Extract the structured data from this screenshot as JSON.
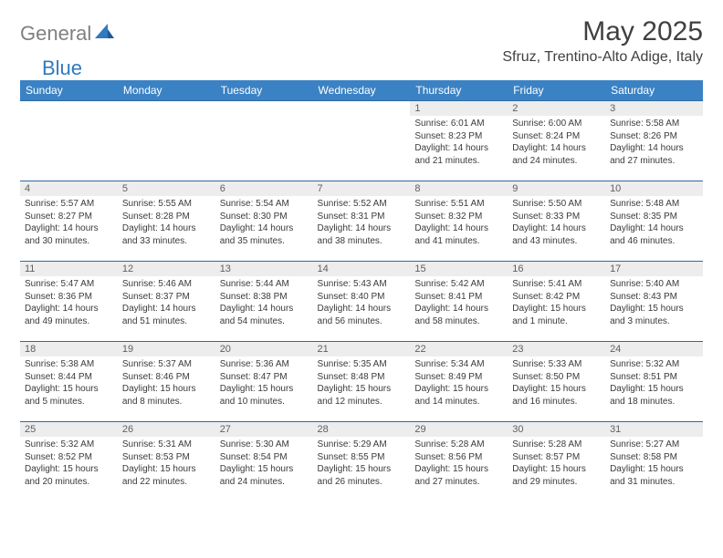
{
  "logo": {
    "text1": "General",
    "text2": "Blue"
  },
  "title": "May 2025",
  "location": "Sfruz, Trentino-Alto Adige, Italy",
  "colors": {
    "header_bg": "#3b82c4",
    "header_text": "#ffffff",
    "row_border": "#2f6aa0",
    "daynum_bg": "#ededed",
    "logo_gray": "#808080",
    "logo_blue": "#2f7ac0"
  },
  "weekdays": [
    "Sunday",
    "Monday",
    "Tuesday",
    "Wednesday",
    "Thursday",
    "Friday",
    "Saturday"
  ],
  "weeks": [
    [
      {
        "n": "",
        "lines": []
      },
      {
        "n": "",
        "lines": []
      },
      {
        "n": "",
        "lines": []
      },
      {
        "n": "",
        "lines": []
      },
      {
        "n": "1",
        "lines": [
          "Sunrise: 6:01 AM",
          "Sunset: 8:23 PM",
          "Daylight: 14 hours",
          "and 21 minutes."
        ]
      },
      {
        "n": "2",
        "lines": [
          "Sunrise: 6:00 AM",
          "Sunset: 8:24 PM",
          "Daylight: 14 hours",
          "and 24 minutes."
        ]
      },
      {
        "n": "3",
        "lines": [
          "Sunrise: 5:58 AM",
          "Sunset: 8:26 PM",
          "Daylight: 14 hours",
          "and 27 minutes."
        ]
      }
    ],
    [
      {
        "n": "4",
        "lines": [
          "Sunrise: 5:57 AM",
          "Sunset: 8:27 PM",
          "Daylight: 14 hours",
          "and 30 minutes."
        ]
      },
      {
        "n": "5",
        "lines": [
          "Sunrise: 5:55 AM",
          "Sunset: 8:28 PM",
          "Daylight: 14 hours",
          "and 33 minutes."
        ]
      },
      {
        "n": "6",
        "lines": [
          "Sunrise: 5:54 AM",
          "Sunset: 8:30 PM",
          "Daylight: 14 hours",
          "and 35 minutes."
        ]
      },
      {
        "n": "7",
        "lines": [
          "Sunrise: 5:52 AM",
          "Sunset: 8:31 PM",
          "Daylight: 14 hours",
          "and 38 minutes."
        ]
      },
      {
        "n": "8",
        "lines": [
          "Sunrise: 5:51 AM",
          "Sunset: 8:32 PM",
          "Daylight: 14 hours",
          "and 41 minutes."
        ]
      },
      {
        "n": "9",
        "lines": [
          "Sunrise: 5:50 AM",
          "Sunset: 8:33 PM",
          "Daylight: 14 hours",
          "and 43 minutes."
        ]
      },
      {
        "n": "10",
        "lines": [
          "Sunrise: 5:48 AM",
          "Sunset: 8:35 PM",
          "Daylight: 14 hours",
          "and 46 minutes."
        ]
      }
    ],
    [
      {
        "n": "11",
        "lines": [
          "Sunrise: 5:47 AM",
          "Sunset: 8:36 PM",
          "Daylight: 14 hours",
          "and 49 minutes."
        ]
      },
      {
        "n": "12",
        "lines": [
          "Sunrise: 5:46 AM",
          "Sunset: 8:37 PM",
          "Daylight: 14 hours",
          "and 51 minutes."
        ]
      },
      {
        "n": "13",
        "lines": [
          "Sunrise: 5:44 AM",
          "Sunset: 8:38 PM",
          "Daylight: 14 hours",
          "and 54 minutes."
        ]
      },
      {
        "n": "14",
        "lines": [
          "Sunrise: 5:43 AM",
          "Sunset: 8:40 PM",
          "Daylight: 14 hours",
          "and 56 minutes."
        ]
      },
      {
        "n": "15",
        "lines": [
          "Sunrise: 5:42 AM",
          "Sunset: 8:41 PM",
          "Daylight: 14 hours",
          "and 58 minutes."
        ]
      },
      {
        "n": "16",
        "lines": [
          "Sunrise: 5:41 AM",
          "Sunset: 8:42 PM",
          "Daylight: 15 hours",
          "and 1 minute."
        ]
      },
      {
        "n": "17",
        "lines": [
          "Sunrise: 5:40 AM",
          "Sunset: 8:43 PM",
          "Daylight: 15 hours",
          "and 3 minutes."
        ]
      }
    ],
    [
      {
        "n": "18",
        "lines": [
          "Sunrise: 5:38 AM",
          "Sunset: 8:44 PM",
          "Daylight: 15 hours",
          "and 5 minutes."
        ]
      },
      {
        "n": "19",
        "lines": [
          "Sunrise: 5:37 AM",
          "Sunset: 8:46 PM",
          "Daylight: 15 hours",
          "and 8 minutes."
        ]
      },
      {
        "n": "20",
        "lines": [
          "Sunrise: 5:36 AM",
          "Sunset: 8:47 PM",
          "Daylight: 15 hours",
          "and 10 minutes."
        ]
      },
      {
        "n": "21",
        "lines": [
          "Sunrise: 5:35 AM",
          "Sunset: 8:48 PM",
          "Daylight: 15 hours",
          "and 12 minutes."
        ]
      },
      {
        "n": "22",
        "lines": [
          "Sunrise: 5:34 AM",
          "Sunset: 8:49 PM",
          "Daylight: 15 hours",
          "and 14 minutes."
        ]
      },
      {
        "n": "23",
        "lines": [
          "Sunrise: 5:33 AM",
          "Sunset: 8:50 PM",
          "Daylight: 15 hours",
          "and 16 minutes."
        ]
      },
      {
        "n": "24",
        "lines": [
          "Sunrise: 5:32 AM",
          "Sunset: 8:51 PM",
          "Daylight: 15 hours",
          "and 18 minutes."
        ]
      }
    ],
    [
      {
        "n": "25",
        "lines": [
          "Sunrise: 5:32 AM",
          "Sunset: 8:52 PM",
          "Daylight: 15 hours",
          "and 20 minutes."
        ]
      },
      {
        "n": "26",
        "lines": [
          "Sunrise: 5:31 AM",
          "Sunset: 8:53 PM",
          "Daylight: 15 hours",
          "and 22 minutes."
        ]
      },
      {
        "n": "27",
        "lines": [
          "Sunrise: 5:30 AM",
          "Sunset: 8:54 PM",
          "Daylight: 15 hours",
          "and 24 minutes."
        ]
      },
      {
        "n": "28",
        "lines": [
          "Sunrise: 5:29 AM",
          "Sunset: 8:55 PM",
          "Daylight: 15 hours",
          "and 26 minutes."
        ]
      },
      {
        "n": "29",
        "lines": [
          "Sunrise: 5:28 AM",
          "Sunset: 8:56 PM",
          "Daylight: 15 hours",
          "and 27 minutes."
        ]
      },
      {
        "n": "30",
        "lines": [
          "Sunrise: 5:28 AM",
          "Sunset: 8:57 PM",
          "Daylight: 15 hours",
          "and 29 minutes."
        ]
      },
      {
        "n": "31",
        "lines": [
          "Sunrise: 5:27 AM",
          "Sunset: 8:58 PM",
          "Daylight: 15 hours",
          "and 31 minutes."
        ]
      }
    ]
  ]
}
